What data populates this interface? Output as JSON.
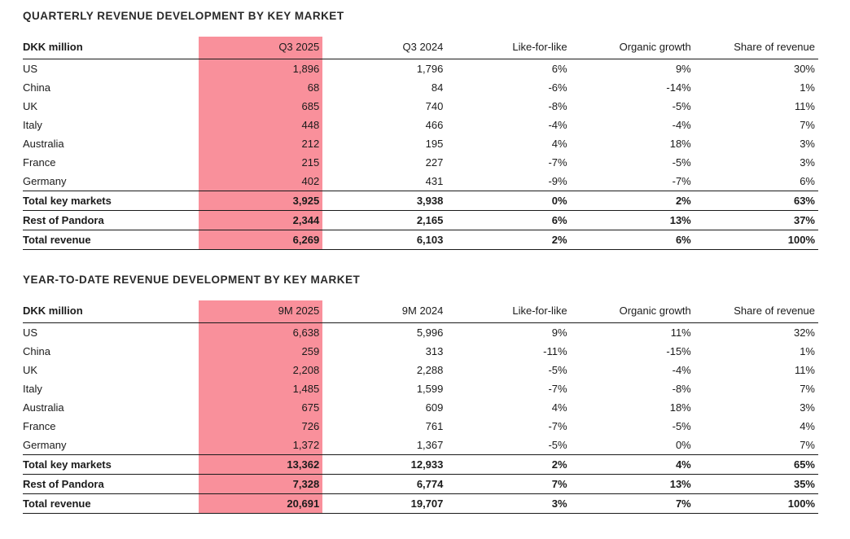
{
  "colors": {
    "highlight": "#F9909B",
    "text": "#1b1b1b",
    "rule": "#1a1a1a"
  },
  "tables": [
    {
      "title": "QUARTERLY REVENUE DEVELOPMENT BY KEY MARKET",
      "columns": [
        "DKK million",
        "Q3 2025",
        "Q3 2024",
        "Like-for-like",
        "Organic growth",
        "Share of revenue"
      ],
      "highlighted_column": "Q3 2025",
      "highlight_col_index": 1,
      "rows": [
        {
          "label": "US",
          "values": [
            "1,896",
            "1,796",
            "6%",
            "9%",
            "30%"
          ],
          "bold": false
        },
        {
          "label": "China",
          "values": [
            "68",
            "84",
            "-6%",
            "-14%",
            "1%"
          ],
          "bold": false
        },
        {
          "label": "UK",
          "values": [
            "685",
            "740",
            "-8%",
            "-5%",
            "11%"
          ],
          "bold": false
        },
        {
          "label": "Italy",
          "values": [
            "448",
            "466",
            "-4%",
            "-4%",
            "7%"
          ],
          "bold": false
        },
        {
          "label": "Australia",
          "values": [
            "212",
            "195",
            "4%",
            "18%",
            "3%"
          ],
          "bold": false
        },
        {
          "label": "France",
          "values": [
            "215",
            "227",
            "-7%",
            "-5%",
            "3%"
          ],
          "bold": false
        },
        {
          "label": "Germany",
          "values": [
            "402",
            "431",
            "-9%",
            "-7%",
            "6%"
          ],
          "bold": false
        },
        {
          "label": "Total key markets",
          "values": [
            "3,925",
            "3,938",
            "0%",
            "2%",
            "63%"
          ],
          "bold": true
        },
        {
          "label": "Rest of Pandora",
          "values": [
            "2,344",
            "2,165",
            "6%",
            "13%",
            "37%"
          ],
          "bold": true
        },
        {
          "label": "Total revenue",
          "values": [
            "6,269",
            "6,103",
            "2%",
            "6%",
            "100%"
          ],
          "bold": true
        }
      ]
    },
    {
      "title": "YEAR-TO-DATE REVENUE DEVELOPMENT BY KEY MARKET",
      "columns": [
        "DKK million",
        "9M 2025",
        "9M 2024",
        "Like-for-like",
        "Organic growth",
        "Share of revenue"
      ],
      "highlighted_column": "9M 2025",
      "highlight_col_index": 1,
      "rows": [
        {
          "label": "US",
          "values": [
            "6,638",
            "5,996",
            "9%",
            "11%",
            "32%"
          ],
          "bold": false
        },
        {
          "label": "China",
          "values": [
            "259",
            "313",
            "-11%",
            "-15%",
            "1%"
          ],
          "bold": false
        },
        {
          "label": "UK",
          "values": [
            "2,208",
            "2,288",
            "-5%",
            "-4%",
            "11%"
          ],
          "bold": false
        },
        {
          "label": "Italy",
          "values": [
            "1,485",
            "1,599",
            "-7%",
            "-8%",
            "7%"
          ],
          "bold": false
        },
        {
          "label": "Australia",
          "values": [
            "675",
            "609",
            "4%",
            "18%",
            "3%"
          ],
          "bold": false
        },
        {
          "label": "France",
          "values": [
            "726",
            "761",
            "-7%",
            "-5%",
            "4%"
          ],
          "bold": false
        },
        {
          "label": "Germany",
          "values": [
            "1,372",
            "1,367",
            "-5%",
            "0%",
            "7%"
          ],
          "bold": false
        },
        {
          "label": "Total key markets",
          "values": [
            "13,362",
            "12,933",
            "2%",
            "4%",
            "65%"
          ],
          "bold": true
        },
        {
          "label": "Rest of Pandora",
          "values": [
            "7,328",
            "6,774",
            "7%",
            "13%",
            "35%"
          ],
          "bold": true
        },
        {
          "label": "Total revenue",
          "values": [
            "20,691",
            "19,707",
            "3%",
            "7%",
            "100%"
          ],
          "bold": true
        }
      ]
    }
  ]
}
